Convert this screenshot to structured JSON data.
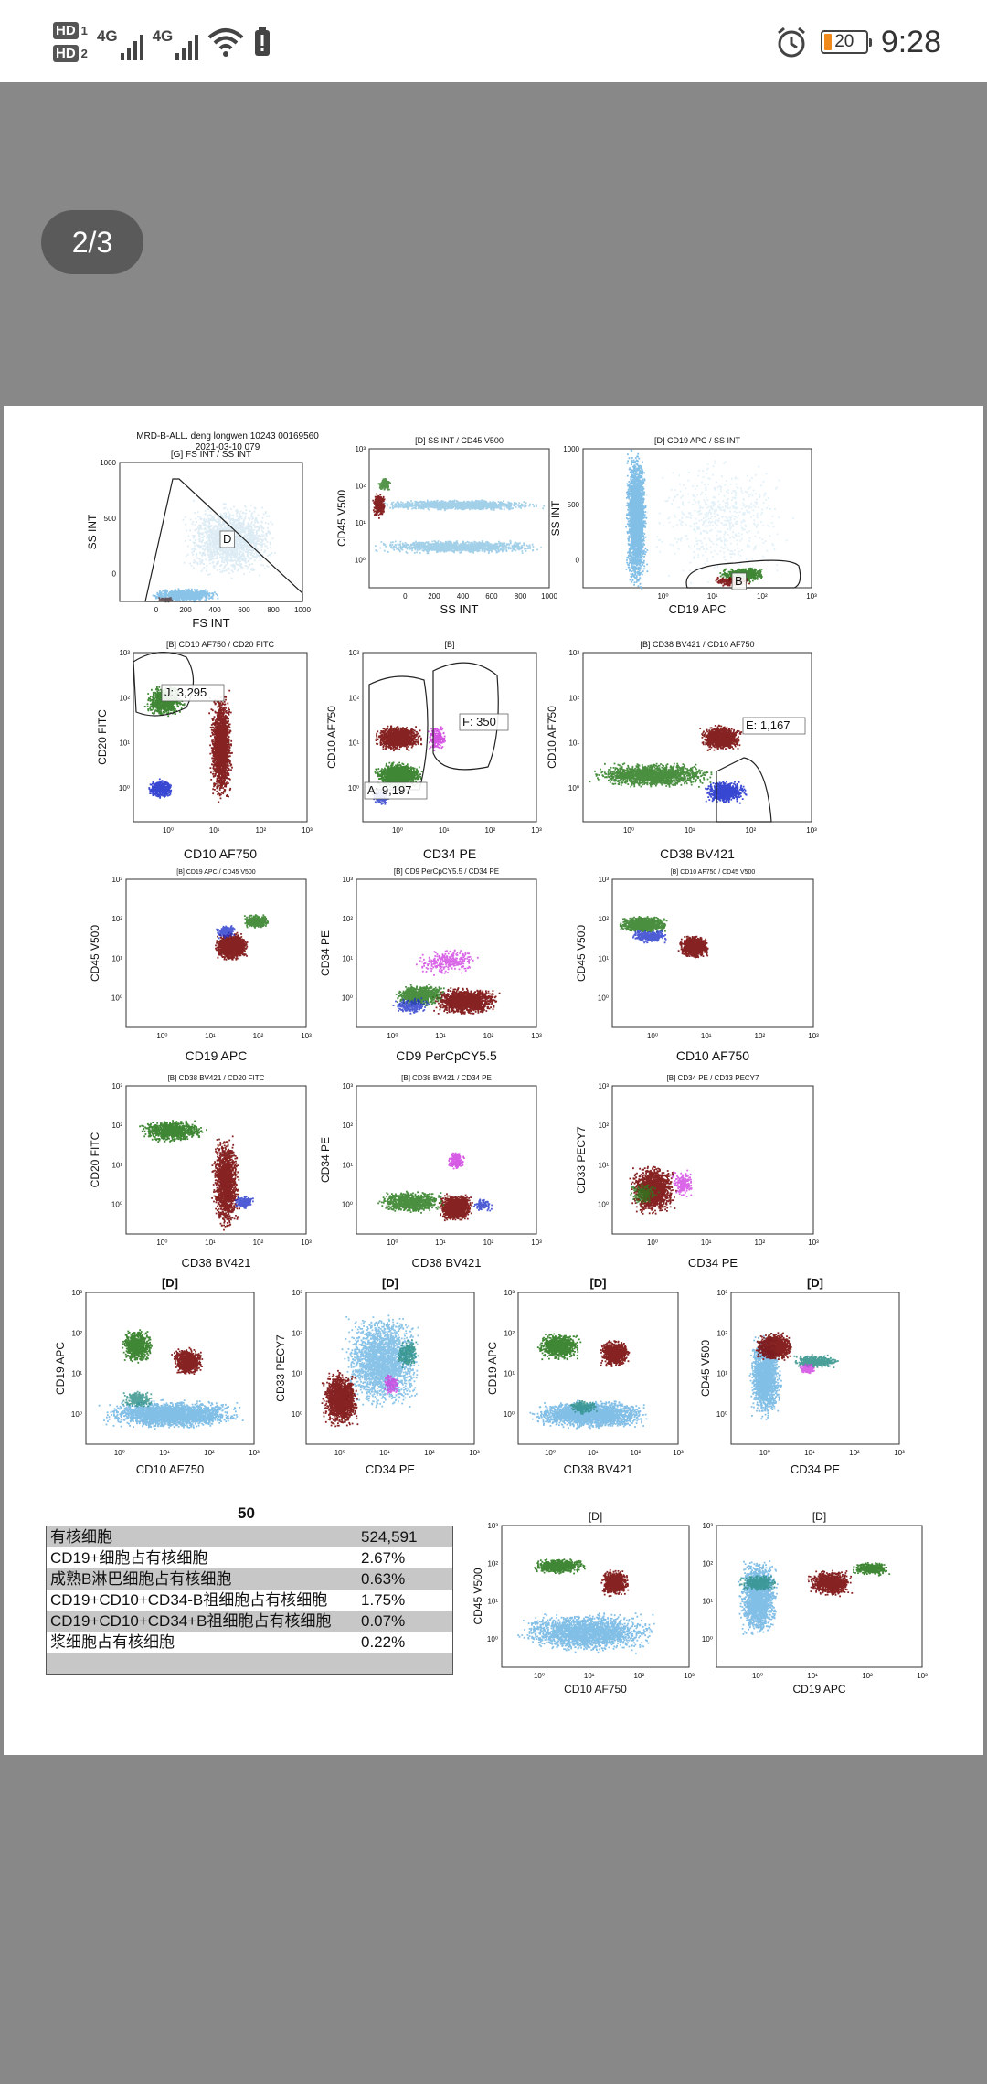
{
  "status_bar": {
    "sim1_label": "HD",
    "sim1_num": "1",
    "sim2_label": "HD",
    "sim2_num": "2",
    "net1": "4G",
    "net2": "4G",
    "battery_level": "20",
    "time": "9:28",
    "icons": [
      "signal-icon",
      "wifi-icon",
      "notification-icon",
      "alarm-icon",
      "battery-icon"
    ]
  },
  "viewer": {
    "page_indicator": "2/3"
  },
  "document": {
    "header_lines": [
      "MRD-B-ALL. deng longwen 10243 00169560",
      "2021-03-10 079",
      "[G] FS INT / SS INT"
    ],
    "plots": [
      {
        "title": "[G] FS INT / SS INT",
        "xlabel": "FS INT",
        "ylabel": "SS INT",
        "gate": "D"
      },
      {
        "title": "[D] SS INT / CD45 V500",
        "xlabel": "SS INT",
        "ylabel": "CD45 V500"
      },
      {
        "title": "[D] CD19 APC / SS INT",
        "xlabel": "CD19 APC",
        "ylabel": "SS INT",
        "gate": "B"
      },
      {
        "title": "[B] CD10 AF750 / CD20 FITC",
        "xlabel": "CD10 AF750",
        "ylabel": "CD20 FITC",
        "gate": "J: 3,295"
      },
      {
        "title": "[B]",
        "xlabel": "CD34 PE",
        "ylabel": "CD10 AF750",
        "gates": [
          "F: 350",
          "A: 9,197"
        ]
      },
      {
        "title": "[B] CD38 BV421 / CD10 AF750",
        "xlabel": "CD38 BV421",
        "ylabel": "CD10 AF750",
        "gate": "E: 1,167"
      },
      {
        "title": "[B] CD19 APC / CD45 V500",
        "xlabel": "CD19 APC",
        "ylabel": "CD45 V500"
      },
      {
        "title": "[B] CD9 PerCpCY5.5 / CD34 PE",
        "xlabel": "CD9 PerCpCY5.5",
        "ylabel": "CD34 PE"
      },
      {
        "title": "[B] CD10 AF750 / CD45 V500",
        "xlabel": "CD10 AF750",
        "ylabel": "CD45 V500"
      },
      {
        "title": "[B] CD38 BV421 / CD20 FITC",
        "xlabel": "CD38 BV421",
        "ylabel": "CD20 FITC"
      },
      {
        "title": "[B] CD38 BV421 / CD34 PE",
        "xlabel": "CD38 BV421",
        "ylabel": "CD34 PE"
      },
      {
        "title": "[B] CD34 PE / CD33 PECY7",
        "xlabel": "CD34 PE",
        "ylabel": "CD33 PECY7"
      },
      {
        "title": "[D]",
        "xlabel": "CD10 AF750",
        "ylabel": "CD19 APC"
      },
      {
        "title": "[D]",
        "xlabel": "CD34 PE",
        "ylabel": "CD33 PECY7"
      },
      {
        "title": "[D]",
        "xlabel": "CD38 BV421",
        "ylabel": "CD19 APC"
      },
      {
        "title": "[D]",
        "xlabel": "CD34 PE",
        "ylabel": "CD45 V500"
      },
      {
        "title": "[D]",
        "xlabel": "CD10 AF750",
        "ylabel": "CD45 V500"
      },
      {
        "title": "[D]",
        "xlabel": "CD19 APC",
        "ylabel": ""
      }
    ],
    "table": {
      "title": "50",
      "rows": [
        {
          "label": "有核细胞",
          "value": "524,591"
        },
        {
          "label": "CD19+细胞占有核细胞",
          "value": "2.67%"
        },
        {
          "label": "成熟B淋巴细胞占有核细胞",
          "value": "0.63%"
        },
        {
          "label": "CD19+CD10+CD34-B祖细胞占有核细胞",
          "value": "1.75%"
        },
        {
          "label": "CD19+CD10+CD34+B祖细胞占有核细胞",
          "value": "0.07%"
        },
        {
          "label": "浆细胞占有核细胞",
          "value": "0.22%"
        },
        {
          "label": "",
          "value": ""
        }
      ]
    },
    "colors": {
      "sky": "#74b8e4",
      "green": "#2a7a1e",
      "maroon": "#7a0a0a",
      "blue": "#2233cc",
      "magenta": "#d040e0",
      "teal": "#2a8f86"
    }
  }
}
